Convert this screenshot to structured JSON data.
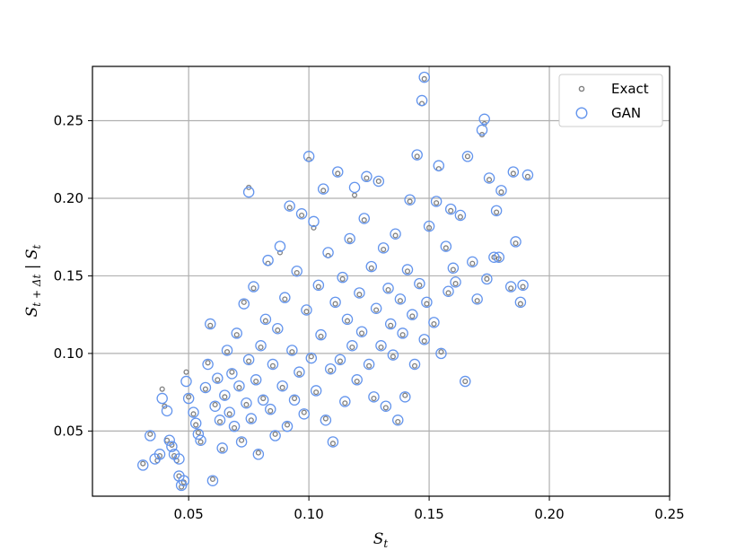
{
  "chart_data": {
    "type": "scatter",
    "xlabel": "S_t",
    "ylabel": "S_{t+Δt} | S_t",
    "xlim": [
      0.01,
      0.25
    ],
    "ylim": [
      0.008,
      0.285
    ],
    "xticks": [
      "0.05",
      "0.10",
      "0.15",
      "0.20",
      "0.25"
    ],
    "yticks": [
      "0.05",
      "0.10",
      "0.15",
      "0.20",
      "0.25"
    ],
    "grid": true,
    "legend_position": "top-right",
    "series": [
      {
        "name": "Exact",
        "color": "#7f7f7f",
        "marker": "small-open-circle",
        "points": [
          [
            0.031,
            0.029
          ],
          [
            0.034,
            0.048
          ],
          [
            0.037,
            0.031
          ],
          [
            0.038,
            0.034
          ],
          [
            0.039,
            0.077
          ],
          [
            0.04,
            0.066
          ],
          [
            0.041,
            0.044
          ],
          [
            0.043,
            0.041
          ],
          [
            0.044,
            0.034
          ],
          [
            0.045,
            0.031
          ],
          [
            0.046,
            0.021
          ],
          [
            0.047,
            0.014
          ],
          [
            0.048,
            0.017
          ],
          [
            0.049,
            0.088
          ],
          [
            0.05,
            0.072
          ],
          [
            0.052,
            0.061
          ],
          [
            0.053,
            0.054
          ],
          [
            0.054,
            0.049
          ],
          [
            0.055,
            0.043
          ],
          [
            0.057,
            0.077
          ],
          [
            0.058,
            0.094
          ],
          [
            0.059,
            0.118
          ],
          [
            0.06,
            0.019
          ],
          [
            0.061,
            0.067
          ],
          [
            0.062,
            0.083
          ],
          [
            0.063,
            0.056
          ],
          [
            0.064,
            0.038
          ],
          [
            0.065,
            0.072
          ],
          [
            0.066,
            0.101
          ],
          [
            0.067,
            0.061
          ],
          [
            0.068,
            0.088
          ],
          [
            0.069,
            0.052
          ],
          [
            0.07,
            0.112
          ],
          [
            0.071,
            0.078
          ],
          [
            0.072,
            0.044
          ],
          [
            0.073,
            0.133
          ],
          [
            0.074,
            0.067
          ],
          [
            0.075,
            0.207
          ],
          [
            0.075,
            0.095
          ],
          [
            0.076,
            0.057
          ],
          [
            0.077,
            0.142
          ],
          [
            0.078,
            0.082
          ],
          [
            0.079,
            0.036
          ],
          [
            0.08,
            0.104
          ],
          [
            0.081,
            0.071
          ],
          [
            0.082,
            0.121
          ],
          [
            0.083,
            0.158
          ],
          [
            0.084,
            0.063
          ],
          [
            0.085,
            0.092
          ],
          [
            0.086,
            0.048
          ],
          [
            0.087,
            0.115
          ],
          [
            0.088,
            0.165
          ],
          [
            0.089,
            0.078
          ],
          [
            0.09,
            0.135
          ],
          [
            0.091,
            0.054
          ],
          [
            0.092,
            0.194
          ],
          [
            0.093,
            0.101
          ],
          [
            0.094,
            0.071
          ],
          [
            0.095,
            0.152
          ],
          [
            0.096,
            0.087
          ],
          [
            0.097,
            0.189
          ],
          [
            0.098,
            0.062
          ],
          [
            0.099,
            0.127
          ],
          [
            0.1,
            0.225
          ],
          [
            0.101,
            0.098
          ],
          [
            0.102,
            0.181
          ],
          [
            0.103,
            0.075
          ],
          [
            0.104,
            0.143
          ],
          [
            0.105,
            0.111
          ],
          [
            0.106,
            0.205
          ],
          [
            0.107,
            0.058
          ],
          [
            0.108,
            0.163
          ],
          [
            0.109,
            0.089
          ],
          [
            0.11,
            0.042
          ],
          [
            0.111,
            0.132
          ],
          [
            0.112,
            0.216
          ],
          [
            0.113,
            0.095
          ],
          [
            0.114,
            0.148
          ],
          [
            0.115,
            0.068
          ],
          [
            0.116,
            0.121
          ],
          [
            0.117,
            0.173
          ],
          [
            0.118,
            0.104
          ],
          [
            0.119,
            0.202
          ],
          [
            0.12,
            0.082
          ],
          [
            0.121,
            0.138
          ],
          [
            0.122,
            0.113
          ],
          [
            0.123,
            0.186
          ],
          [
            0.124,
            0.213
          ],
          [
            0.125,
            0.092
          ],
          [
            0.126,
            0.155
          ],
          [
            0.127,
            0.071
          ],
          [
            0.128,
            0.128
          ],
          [
            0.129,
            0.211
          ],
          [
            0.13,
            0.104
          ],
          [
            0.131,
            0.167
          ],
          [
            0.132,
            0.065
          ],
          [
            0.133,
            0.141
          ],
          [
            0.134,
            0.118
          ],
          [
            0.135,
            0.098
          ],
          [
            0.136,
            0.176
          ],
          [
            0.137,
            0.056
          ],
          [
            0.138,
            0.134
          ],
          [
            0.139,
            0.112
          ],
          [
            0.14,
            0.073
          ],
          [
            0.141,
            0.153
          ],
          [
            0.142,
            0.198
          ],
          [
            0.143,
            0.124
          ],
          [
            0.144,
            0.092
          ],
          [
            0.145,
            0.227
          ],
          [
            0.146,
            0.144
          ],
          [
            0.147,
            0.261
          ],
          [
            0.148,
            0.277
          ],
          [
            0.148,
            0.108
          ],
          [
            0.149,
            0.132
          ],
          [
            0.15,
            0.181
          ],
          [
            0.152,
            0.119
          ],
          [
            0.153,
            0.197
          ],
          [
            0.154,
            0.219
          ],
          [
            0.155,
            0.101
          ],
          [
            0.157,
            0.168
          ],
          [
            0.158,
            0.139
          ],
          [
            0.159,
            0.192
          ],
          [
            0.16,
            0.154
          ],
          [
            0.161,
            0.145
          ],
          [
            0.163,
            0.188
          ],
          [
            0.165,
            0.082
          ],
          [
            0.166,
            0.227
          ],
          [
            0.168,
            0.158
          ],
          [
            0.17,
            0.134
          ],
          [
            0.172,
            0.241
          ],
          [
            0.173,
            0.248
          ],
          [
            0.174,
            0.148
          ],
          [
            0.175,
            0.212
          ],
          [
            0.177,
            0.162
          ],
          [
            0.178,
            0.191
          ],
          [
            0.179,
            0.161
          ],
          [
            0.18,
            0.204
          ],
          [
            0.184,
            0.142
          ],
          [
            0.185,
            0.216
          ],
          [
            0.186,
            0.171
          ],
          [
            0.188,
            0.132
          ],
          [
            0.189,
            0.143
          ],
          [
            0.191,
            0.214
          ]
        ]
      },
      {
        "name": "GAN",
        "color": "#6495ed",
        "marker": "open-circle",
        "points": [
          [
            0.031,
            0.028
          ],
          [
            0.034,
            0.047
          ],
          [
            0.036,
            0.032
          ],
          [
            0.038,
            0.035
          ],
          [
            0.039,
            0.071
          ],
          [
            0.041,
            0.063
          ],
          [
            0.042,
            0.044
          ],
          [
            0.043,
            0.04
          ],
          [
            0.044,
            0.035
          ],
          [
            0.046,
            0.032
          ],
          [
            0.046,
            0.021
          ],
          [
            0.047,
            0.015
          ],
          [
            0.048,
            0.018
          ],
          [
            0.049,
            0.082
          ],
          [
            0.05,
            0.071
          ],
          [
            0.052,
            0.062
          ],
          [
            0.053,
            0.055
          ],
          [
            0.054,
            0.048
          ],
          [
            0.055,
            0.044
          ],
          [
            0.057,
            0.078
          ],
          [
            0.058,
            0.093
          ],
          [
            0.059,
            0.119
          ],
          [
            0.06,
            0.018
          ],
          [
            0.061,
            0.066
          ],
          [
            0.062,
            0.084
          ],
          [
            0.063,
            0.057
          ],
          [
            0.064,
            0.039
          ],
          [
            0.065,
            0.073
          ],
          [
            0.066,
            0.102
          ],
          [
            0.067,
            0.062
          ],
          [
            0.068,
            0.087
          ],
          [
            0.069,
            0.053
          ],
          [
            0.07,
            0.113
          ],
          [
            0.071,
            0.079
          ],
          [
            0.072,
            0.043
          ],
          [
            0.073,
            0.132
          ],
          [
            0.074,
            0.068
          ],
          [
            0.075,
            0.204
          ],
          [
            0.075,
            0.096
          ],
          [
            0.076,
            0.058
          ],
          [
            0.077,
            0.143
          ],
          [
            0.078,
            0.083
          ],
          [
            0.079,
            0.035
          ],
          [
            0.08,
            0.105
          ],
          [
            0.081,
            0.07
          ],
          [
            0.082,
            0.122
          ],
          [
            0.083,
            0.16
          ],
          [
            0.084,
            0.064
          ],
          [
            0.085,
            0.093
          ],
          [
            0.086,
            0.047
          ],
          [
            0.087,
            0.116
          ],
          [
            0.088,
            0.169
          ],
          [
            0.089,
            0.079
          ],
          [
            0.09,
            0.136
          ],
          [
            0.091,
            0.053
          ],
          [
            0.092,
            0.195
          ],
          [
            0.093,
            0.102
          ],
          [
            0.094,
            0.07
          ],
          [
            0.095,
            0.153
          ],
          [
            0.096,
            0.088
          ],
          [
            0.097,
            0.19
          ],
          [
            0.098,
            0.061
          ],
          [
            0.099,
            0.128
          ],
          [
            0.1,
            0.227
          ],
          [
            0.101,
            0.097
          ],
          [
            0.102,
            0.185
          ],
          [
            0.103,
            0.076
          ],
          [
            0.104,
            0.144
          ],
          [
            0.105,
            0.112
          ],
          [
            0.106,
            0.206
          ],
          [
            0.107,
            0.057
          ],
          [
            0.108,
            0.165
          ],
          [
            0.109,
            0.09
          ],
          [
            0.11,
            0.043
          ],
          [
            0.111,
            0.133
          ],
          [
            0.112,
            0.217
          ],
          [
            0.113,
            0.096
          ],
          [
            0.114,
            0.149
          ],
          [
            0.115,
            0.069
          ],
          [
            0.116,
            0.122
          ],
          [
            0.117,
            0.174
          ],
          [
            0.118,
            0.105
          ],
          [
            0.119,
            0.207
          ],
          [
            0.12,
            0.083
          ],
          [
            0.121,
            0.139
          ],
          [
            0.122,
            0.114
          ],
          [
            0.123,
            0.187
          ],
          [
            0.124,
            0.214
          ],
          [
            0.125,
            0.093
          ],
          [
            0.126,
            0.156
          ],
          [
            0.127,
            0.072
          ],
          [
            0.128,
            0.129
          ],
          [
            0.129,
            0.211
          ],
          [
            0.13,
            0.105
          ],
          [
            0.131,
            0.168
          ],
          [
            0.132,
            0.066
          ],
          [
            0.133,
            0.142
          ],
          [
            0.134,
            0.119
          ],
          [
            0.135,
            0.099
          ],
          [
            0.136,
            0.177
          ],
          [
            0.137,
            0.057
          ],
          [
            0.138,
            0.135
          ],
          [
            0.139,
            0.113
          ],
          [
            0.14,
            0.072
          ],
          [
            0.141,
            0.154
          ],
          [
            0.142,
            0.199
          ],
          [
            0.143,
            0.125
          ],
          [
            0.144,
            0.093
          ],
          [
            0.145,
            0.228
          ],
          [
            0.146,
            0.145
          ],
          [
            0.147,
            0.263
          ],
          [
            0.148,
            0.278
          ],
          [
            0.148,
            0.109
          ],
          [
            0.149,
            0.133
          ],
          [
            0.15,
            0.182
          ],
          [
            0.152,
            0.12
          ],
          [
            0.153,
            0.198
          ],
          [
            0.154,
            0.221
          ],
          [
            0.155,
            0.1
          ],
          [
            0.157,
            0.169
          ],
          [
            0.158,
            0.14
          ],
          [
            0.159,
            0.193
          ],
          [
            0.16,
            0.155
          ],
          [
            0.161,
            0.146
          ],
          [
            0.163,
            0.189
          ],
          [
            0.165,
            0.082
          ],
          [
            0.166,
            0.227
          ],
          [
            0.168,
            0.159
          ],
          [
            0.17,
            0.135
          ],
          [
            0.172,
            0.244
          ],
          [
            0.173,
            0.251
          ],
          [
            0.174,
            0.148
          ],
          [
            0.175,
            0.213
          ],
          [
            0.177,
            0.162
          ],
          [
            0.178,
            0.192
          ],
          [
            0.179,
            0.162
          ],
          [
            0.18,
            0.205
          ],
          [
            0.184,
            0.143
          ],
          [
            0.185,
            0.217
          ],
          [
            0.186,
            0.172
          ],
          [
            0.188,
            0.133
          ],
          [
            0.189,
            0.144
          ],
          [
            0.191,
            0.215
          ]
        ]
      }
    ]
  }
}
